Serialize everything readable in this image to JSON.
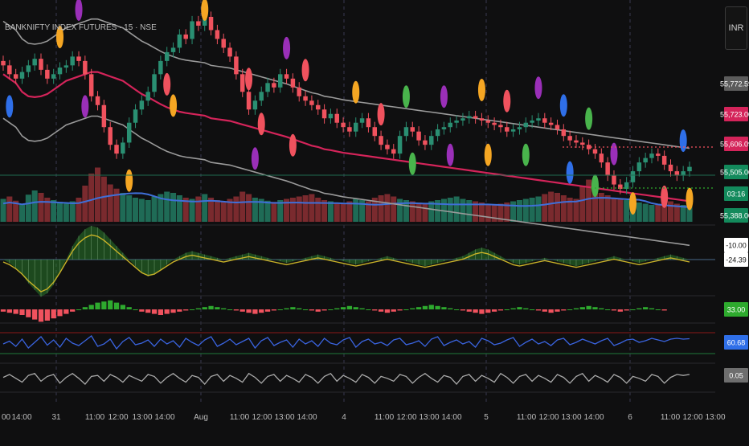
{
  "header": {
    "symbol_title": "BANKNIFTY INDEX FUTURES · 15 · NSE"
  },
  "currency_label": "INR",
  "colors": {
    "background": "#0f0f10",
    "bull": "#2a8f72",
    "bear": "#f0525e",
    "ma_red": "#d4245a",
    "band_gray": "#9a9a9a",
    "volume_ma": "#3f6fd8",
    "osc_pos": "#2eaa2e",
    "osc_neg": "#8b1818",
    "rsi_line": "#3a64e0",
    "dot_blue": "#2f6fe8",
    "dot_green": "#49b44c",
    "dot_purple": "#9a2fb8",
    "dot_orange": "#f5a623",
    "dot_red": "#f0525e"
  },
  "price_axis": {
    "labels": [
      {
        "text": "55,772.59",
        "bg": "#5c5c5c",
        "price": 55772.59
      },
      {
        "text": "55,723.00",
        "bg": "#d4245a",
        "price": 55723.0
      },
      {
        "text": "55,606.09",
        "bg": "#d4245a",
        "price": 55606.09
      },
      {
        "text": "55,505.00",
        "bg": "#138a5c",
        "price": 55505.0
      },
      {
        "text": "03:16",
        "bg": "#138a5c",
        "price": 55455.0
      },
      {
        "text": "55,388.00",
        "bg": "#138a5c",
        "price": 55388.0
      }
    ]
  },
  "osc_axis": [
    {
      "text": "-10.00",
      "bg": "#ffffff",
      "fg": "#111111"
    },
    {
      "text": "-24.39",
      "bg": "#ffffff",
      "fg": "#111111"
    }
  ],
  "hist_axis": {
    "text": "33.00",
    "bg": "#2eaa2e",
    "fg": "#ffffff"
  },
  "rsi_axis": {
    "text": "60.68",
    "bg": "#2f6fe8",
    "fg": "#ffffff"
  },
  "bottom_axis": {
    "text": "0.05",
    "bg": "#6e6e6e",
    "fg": "#ffffff"
  },
  "time_axis": {
    "labels": [
      "00",
      "14:00",
      "31",
      "11:00",
      "12:00",
      "13:00",
      "14:00",
      "Aug",
      "11:00",
      "12:00",
      "13:00",
      "14:00",
      "4",
      "11:00",
      "12:00",
      "13:00",
      "14:00",
      "5",
      "11:00",
      "12:00",
      "13:00",
      "14:00",
      "6",
      "11:00",
      "12:00",
      "13:00"
    ]
  },
  "chart_data": {
    "type": "candlestick",
    "title": "BANKNIFTY INDEX FUTURES · 15 · NSE",
    "close": [
      55720,
      55700,
      55690,
      55705,
      55720,
      55735,
      55710,
      55690,
      55700,
      55715,
      55720,
      55740,
      55730,
      55700,
      55650,
      55630,
      55580,
      55540,
      55520,
      55545,
      55590,
      55620,
      55640,
      55660,
      55700,
      55730,
      55750,
      55760,
      55790,
      55780,
      55820,
      55810,
      55830,
      55800,
      55780,
      55760,
      55740,
      55700,
      55660,
      55620,
      55640,
      55660,
      55680,
      55670,
      55700,
      55690,
      55670,
      55650,
      55640,
      55630,
      55620,
      55600,
      55610,
      55590,
      55580,
      55570,
      55590,
      55600,
      55580,
      55560,
      55540,
      55530,
      55520,
      55560,
      55580,
      55570,
      55550,
      55540,
      55560,
      55575,
      55580,
      55590,
      55595,
      55600,
      55605,
      55600,
      55595,
      55590,
      55585,
      55580,
      55570,
      55575,
      55580,
      55590,
      55595,
      55600,
      55590,
      55585,
      55575,
      55560,
      55550,
      55545,
      55540,
      55530,
      55520,
      55500,
      55470,
      55450,
      55440,
      55455,
      55480,
      55500,
      55510,
      55520,
      55515,
      55495,
      55480,
      55470,
      55480,
      55490
    ],
    "ma": [
      55700,
      55690,
      55680,
      55660,
      55650,
      55648,
      55650,
      55655,
      55665,
      55675,
      55685,
      55690,
      55695,
      55700,
      55705,
      55705,
      55700,
      55695,
      55690,
      55685,
      55675,
      55665,
      55655,
      55648,
      55640,
      55632,
      55625,
      55620,
      55615,
      55612,
      55610,
      55608,
      55606,
      55600,
      55598,
      55596,
      55594,
      55590,
      55586,
      55582,
      55578,
      55574,
      55570,
      55566,
      55562,
      55558,
      55553,
      55548,
      55543,
      55538,
      55535,
      55530,
      55528,
      55525,
      55522,
      55520,
      55518,
      55516,
      55514,
      55512,
      55510,
      55508,
      55506,
      55504,
      55502,
      55500,
      55498,
      55496,
      55494,
      55492,
      55490,
      55488,
      55486,
      55484,
      55482,
      55480,
      55478,
      55476,
      55474,
      55472,
      55470,
      55468,
      55466,
      55464,
      55462,
      55460,
      55458,
      55456,
      55454,
      55452,
      55450,
      55448,
      55446,
      55444,
      55442,
      55440,
      55438,
      55436,
      55434,
      55432,
      55430,
      55428,
      55426,
      55424,
      55422,
      55420,
      55418,
      55416,
      55414,
      55412
    ],
    "volume": [
      38,
      42,
      35,
      30,
      45,
      52,
      48,
      40,
      36,
      33,
      30,
      34,
      40,
      60,
      80,
      90,
      75,
      62,
      55,
      48,
      44,
      40,
      38,
      36,
      42,
      46,
      50,
      48,
      44,
      40,
      38,
      42,
      46,
      40,
      36,
      34,
      38,
      42,
      50,
      46,
      40,
      38,
      35,
      33,
      36,
      38,
      40,
      42,
      44,
      46,
      40,
      36,
      34,
      32,
      30,
      34,
      38,
      36,
      34,
      40,
      44,
      46,
      42,
      38,
      36,
      34,
      32,
      30,
      34,
      36,
      38,
      40,
      42,
      38,
      36,
      34,
      32,
      30,
      28,
      30,
      32,
      34,
      36,
      38,
      40,
      42,
      46,
      50,
      48,
      44,
      40,
      38,
      60,
      70,
      55,
      48,
      44,
      40,
      38,
      36,
      34,
      32,
      30,
      28,
      30,
      32,
      34,
      30,
      28,
      26
    ],
    "oscillator": [
      0,
      -2,
      -5,
      -9,
      -14,
      -18,
      -22,
      -20,
      -15,
      -8,
      0,
      8,
      14,
      18,
      20,
      19,
      16,
      12,
      8,
      4,
      0,
      -4,
      -8,
      -10,
      -9,
      -6,
      -3,
      0,
      2,
      4,
      5,
      4,
      3,
      2,
      1,
      0,
      1,
      2,
      3,
      4,
      3,
      2,
      1,
      0,
      -1,
      -2,
      -1,
      0,
      1,
      2,
      3,
      2,
      1,
      0,
      -1,
      -2,
      -3,
      -2,
      -1,
      0,
      1,
      2,
      1,
      0,
      -1,
      -2,
      -3,
      -4,
      -3,
      -2,
      -1,
      0,
      1,
      2,
      4,
      6,
      7,
      6,
      4,
      2,
      0,
      -2,
      -3,
      -2,
      -1,
      0,
      1,
      0,
      -1,
      -2,
      -3,
      -4,
      -3,
      -2,
      -1,
      0,
      1,
      2,
      1,
      0,
      -1,
      -2,
      -1,
      0,
      1,
      2,
      3,
      2,
      1,
      0
    ],
    "histogram": [
      -4,
      -6,
      -8,
      -10,
      -14,
      -18,
      -22,
      -20,
      -16,
      -12,
      -8,
      -4,
      0,
      4,
      8,
      12,
      14,
      16,
      12,
      8,
      4,
      0,
      -4,
      -6,
      -8,
      -10,
      -8,
      -6,
      -4,
      -2,
      0,
      2,
      4,
      6,
      4,
      2,
      0,
      -2,
      -4,
      -6,
      -8,
      -6,
      -4,
      -2,
      0,
      2,
      4,
      2,
      0,
      -2,
      -4,
      -2,
      0,
      2,
      4,
      6,
      4,
      2,
      0,
      -2,
      -4,
      -6,
      -4,
      -2,
      0,
      2,
      4,
      6,
      8,
      6,
      4,
      2,
      0,
      -2,
      -4,
      -6,
      -8,
      -6,
      -4,
      -2,
      0,
      2,
      4,
      2,
      0,
      -2,
      -4,
      -6,
      -4,
      -2,
      0,
      2,
      4,
      6,
      4,
      2,
      0,
      -2,
      -4,
      -2,
      0,
      2,
      4,
      2,
      0,
      -2
    ],
    "rsi": [
      48,
      55,
      42,
      60,
      38,
      52,
      66,
      45,
      58,
      40,
      62,
      50,
      44,
      56,
      68,
      42,
      48,
      60,
      36,
      54,
      64,
      46,
      50,
      58,
      42,
      60,
      48,
      56,
      40,
      62,
      52,
      44,
      58,
      66,
      42,
      50,
      60,
      46,
      54,
      62,
      38,
      56,
      64,
      44,
      52,
      58,
      40,
      60,
      48,
      56,
      42,
      62,
      50,
      46,
      58,
      64,
      40,
      54,
      60,
      48,
      52,
      44,
      58,
      62,
      46,
      50,
      56,
      42,
      60,
      66,
      44,
      52,
      58,
      48,
      54,
      40,
      62,
      56,
      46,
      50,
      58,
      64,
      42,
      52,
      60,
      48,
      54,
      44,
      58,
      62,
      46,
      52,
      60,
      54,
      48,
      56,
      62,
      44,
      50,
      58,
      60,
      52,
      56,
      62,
      58,
      54,
      60,
      62,
      60,
      61
    ],
    "bottom_osc": [
      0.02,
      0.05,
      0.01,
      -0.03,
      0.04,
      0.06,
      -0.02,
      0.03,
      0.05,
      -0.04,
      0.02,
      0.06,
      0.01,
      -0.05,
      0.03,
      0.04,
      -0.02,
      0.05,
      0.02,
      -0.03,
      0.04,
      0.01,
      -0.02,
      0.05,
      0.03,
      -0.04,
      0.02,
      0.06,
      0.01,
      -0.03,
      0.04,
      0.02,
      -0.05,
      0.03,
      0.05,
      -0.02,
      0.04,
      0.01,
      -0.03,
      0.06,
      0.02,
      -0.04,
      0.03,
      0.05,
      -0.02,
      0.04,
      0.01,
      -0.03,
      0.05,
      0.02,
      -0.04,
      0.03,
      0.06,
      -0.02,
      0.04,
      0.01,
      -0.03,
      0.05,
      0.02,
      -0.04,
      0.03,
      0.01,
      -0.02,
      0.05,
      0.03,
      -0.04,
      0.02,
      0.06,
      0.01,
      -0.03,
      0.04,
      0.02,
      -0.05,
      0.03,
      0.05,
      -0.02,
      0.04,
      0.01,
      -0.03,
      0.06,
      0.02,
      -0.04,
      0.03,
      0.05,
      -0.02,
      0.04,
      0.01,
      -0.03,
      0.05,
      0.02,
      -0.04,
      0.03,
      0.06,
      -0.02,
      0.04,
      0.01,
      -0.03,
      0.05,
      0.02,
      -0.04,
      0.03,
      0.01,
      -0.02,
      0.05,
      0.03,
      -0.04,
      0.02,
      0.05,
      0.04,
      0.05
    ],
    "dots": [
      {
        "i": 1,
        "c": "dot_blue",
        "level": "low"
      },
      {
        "i": 9,
        "c": "dot_orange",
        "level": "high"
      },
      {
        "i": 12,
        "c": "dot_purple",
        "level": "high2"
      },
      {
        "i": 13,
        "c": "dot_purple",
        "level": "low"
      },
      {
        "i": 20,
        "c": "dot_orange",
        "level": "low2"
      },
      {
        "i": 26,
        "c": "dot_red",
        "level": "low"
      },
      {
        "i": 27,
        "c": "dot_orange",
        "level": "low2"
      },
      {
        "i": 32,
        "c": "dot_orange",
        "level": "high"
      },
      {
        "i": 39,
        "c": "dot_red",
        "level": "high"
      },
      {
        "i": 40,
        "c": "dot_purple",
        "level": "low2"
      },
      {
        "i": 41,
        "c": "dot_red",
        "level": "low"
      },
      {
        "i": 45,
        "c": "dot_purple",
        "level": "high"
      },
      {
        "i": 46,
        "c": "dot_red",
        "level": "low2"
      },
      {
        "i": 48,
        "c": "dot_red",
        "level": "high"
      },
      {
        "i": 56,
        "c": "dot_orange",
        "level": "high"
      },
      {
        "i": 60,
        "c": "dot_red",
        "level": "high"
      },
      {
        "i": 64,
        "c": "dot_green",
        "level": "high"
      },
      {
        "i": 65,
        "c": "dot_green",
        "level": "low"
      },
      {
        "i": 70,
        "c": "dot_purple",
        "level": "high"
      },
      {
        "i": 71,
        "c": "dot_purple",
        "level": "low"
      },
      {
        "i": 76,
        "c": "dot_orange",
        "level": "high"
      },
      {
        "i": 77,
        "c": "dot_orange",
        "level": "low"
      },
      {
        "i": 80,
        "c": "dot_red",
        "level": "high"
      },
      {
        "i": 83,
        "c": "dot_green",
        "level": "low"
      },
      {
        "i": 85,
        "c": "dot_purple",
        "level": "high"
      },
      {
        "i": 89,
        "c": "dot_blue",
        "level": "high"
      },
      {
        "i": 90,
        "c": "dot_blue",
        "level": "low"
      },
      {
        "i": 93,
        "c": "dot_green",
        "level": "high"
      },
      {
        "i": 94,
        "c": "dot_green",
        "level": "low"
      },
      {
        "i": 97,
        "c": "dot_purple",
        "level": "high"
      },
      {
        "i": 100,
        "c": "dot_orange",
        "level": "low"
      },
      {
        "i": 105,
        "c": "dot_red",
        "level": "low"
      },
      {
        "i": 108,
        "c": "dot_blue",
        "level": "high"
      },
      {
        "i": 109,
        "c": "dot_orange",
        "level": "low"
      }
    ]
  }
}
